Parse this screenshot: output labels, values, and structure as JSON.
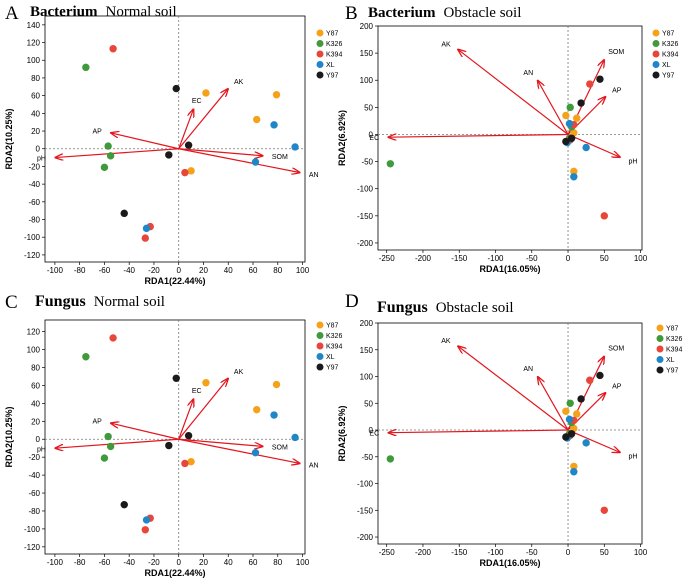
{
  "colors": {
    "Y87": "#f5a21b",
    "K326": "#3f9a3b",
    "K394": "#e8463b",
    "XL": "#1f86c8",
    "Y97": "#1a1a1a",
    "arrow": "#e3161e",
    "zero": "#777777"
  },
  "legend": [
    "Y87",
    "K326",
    "K394",
    "XL",
    "Y97"
  ],
  "chart_data": [
    {
      "type": "scatter",
      "panel": "A",
      "title_bold": "Bacterium",
      "title_rest": "Normal soil",
      "xlabel": "RDA1(22.44%)",
      "ylabel": "RDA2(10.25%)",
      "xlim": [
        -108,
        102
      ],
      "ylim": [
        -128,
        150
      ],
      "xticks": [
        -100,
        -80,
        -60,
        -40,
        -20,
        0,
        20,
        40,
        60,
        80,
        100
      ],
      "yticks": [
        -120,
        -100,
        -80,
        -60,
        -40,
        -20,
        0,
        20,
        40,
        60,
        80,
        100,
        120,
        140
      ],
      "points": [
        {
          "g": "Y87",
          "x": 22,
          "y": 63
        },
        {
          "g": "Y87",
          "x": 63,
          "y": 33
        },
        {
          "g": "Y87",
          "x": 79,
          "y": 61
        },
        {
          "g": "Y87",
          "x": 10,
          "y": -25
        },
        {
          "g": "K326",
          "x": -75,
          "y": 92
        },
        {
          "g": "K326",
          "x": -57,
          "y": 3
        },
        {
          "g": "K326",
          "x": -55,
          "y": -8
        },
        {
          "g": "K326",
          "x": -60,
          "y": -21
        },
        {
          "g": "K394",
          "x": -53,
          "y": 113
        },
        {
          "g": "K394",
          "x": 5,
          "y": -27
        },
        {
          "g": "K394",
          "x": -23,
          "y": -88
        },
        {
          "g": "K394",
          "x": -27,
          "y": -101
        },
        {
          "g": "XL",
          "x": 77,
          "y": 27
        },
        {
          "g": "XL",
          "x": 94,
          "y": 2
        },
        {
          "g": "XL",
          "x": 62,
          "y": -15
        },
        {
          "g": "XL",
          "x": -26,
          "y": -90
        },
        {
          "g": "Y97",
          "x": -2,
          "y": 68
        },
        {
          "g": "Y97",
          "x": 8,
          "y": 4
        },
        {
          "g": "Y97",
          "x": -8,
          "y": -7
        },
        {
          "g": "Y97",
          "x": -44,
          "y": -73
        }
      ],
      "vectors": [
        {
          "name": "AK",
          "x": 40,
          "y": 68
        },
        {
          "name": "EC",
          "x": 12,
          "y": 45
        },
        {
          "name": "AP",
          "x": -55,
          "y": 18
        },
        {
          "name": "pH",
          "x": -100,
          "y": -10
        },
        {
          "name": "SOM",
          "x": 68,
          "y": -8
        },
        {
          "name": "AN",
          "x": 98,
          "y": -27
        }
      ]
    },
    {
      "type": "scatter",
      "panel": "B",
      "title_bold": "Bacterium",
      "title_rest": "Obstacle soil",
      "xlabel": "RDA1(16.05%)",
      "ylabel": "RDA2(6.92%)",
      "xlim": [
        -262,
        102
      ],
      "ylim": [
        -213,
        200
      ],
      "xticks": [
        -250,
        -200,
        -150,
        -100,
        -50,
        0,
        50,
        100
      ],
      "yticks": [
        -200,
        -150,
        -100,
        -50,
        0,
        50,
        100,
        150,
        200
      ],
      "points": [
        {
          "g": "Y87",
          "x": -3,
          "y": 35
        },
        {
          "g": "Y87",
          "x": 12,
          "y": 30
        },
        {
          "g": "Y87",
          "x": 8,
          "y": 3
        },
        {
          "g": "Y87",
          "x": 8,
          "y": -68
        },
        {
          "g": "K326",
          "x": -245,
          "y": -54
        },
        {
          "g": "K326",
          "x": 3,
          "y": 50
        },
        {
          "g": "K326",
          "x": 5,
          "y": 14
        },
        {
          "g": "K326",
          "x": 2,
          "y": -7
        },
        {
          "g": "K394",
          "x": 30,
          "y": 93
        },
        {
          "g": "K394",
          "x": 50,
          "y": -150
        },
        {
          "g": "K394",
          "x": 8,
          "y": 18
        },
        {
          "g": "K394",
          "x": 3,
          "y": -10
        },
        {
          "g": "XL",
          "x": 25,
          "y": -24
        },
        {
          "g": "XL",
          "x": 8,
          "y": -78
        },
        {
          "g": "XL",
          "x": 2,
          "y": 20
        },
        {
          "g": "XL",
          "x": -1,
          "y": -15
        },
        {
          "g": "Y97",
          "x": 44,
          "y": 102
        },
        {
          "g": "Y97",
          "x": 18,
          "y": 58
        },
        {
          "g": "Y97",
          "x": 5,
          "y": -7
        },
        {
          "g": "Y97",
          "x": -3,
          "y": -13
        }
      ],
      "vectors": [
        {
          "name": "AK",
          "x": -152,
          "y": 157
        },
        {
          "name": "AN",
          "x": -42,
          "y": 100
        },
        {
          "name": "SOM",
          "x": 50,
          "y": 138
        },
        {
          "name": "AP",
          "x": 52,
          "y": 70
        },
        {
          "name": "EC",
          "x": -248,
          "y": -5
        },
        {
          "name": "pH",
          "x": 72,
          "y": -42
        }
      ]
    },
    {
      "type": "scatter",
      "panel": "C",
      "title_bold": "Fungus",
      "title_rest": "Normal soil",
      "xlabel": "RDA1(22.44%)",
      "ylabel": "RDA2(10.25%)",
      "xlim": [
        -108,
        102
      ],
      "ylim": [
        -128,
        133
      ],
      "xticks": [
        -100,
        -80,
        -60,
        -40,
        -20,
        0,
        20,
        40,
        60,
        80,
        100
      ],
      "yticks": [
        -120,
        -100,
        -80,
        -60,
        -40,
        -20,
        0,
        20,
        40,
        60,
        80,
        100,
        120
      ],
      "points": [
        {
          "g": "Y87",
          "x": 22,
          "y": 63
        },
        {
          "g": "Y87",
          "x": 63,
          "y": 33
        },
        {
          "g": "Y87",
          "x": 79,
          "y": 61
        },
        {
          "g": "Y87",
          "x": 10,
          "y": -25
        },
        {
          "g": "K326",
          "x": -75,
          "y": 92
        },
        {
          "g": "K326",
          "x": -57,
          "y": 3
        },
        {
          "g": "K326",
          "x": -55,
          "y": -8
        },
        {
          "g": "K326",
          "x": -60,
          "y": -21
        },
        {
          "g": "K394",
          "x": -53,
          "y": 113
        },
        {
          "g": "K394",
          "x": 5,
          "y": -27
        },
        {
          "g": "K394",
          "x": -23,
          "y": -88
        },
        {
          "g": "K394",
          "x": -27,
          "y": -101
        },
        {
          "g": "XL",
          "x": 77,
          "y": 27
        },
        {
          "g": "XL",
          "x": 94,
          "y": 2
        },
        {
          "g": "XL",
          "x": 62,
          "y": -15
        },
        {
          "g": "XL",
          "x": -26,
          "y": -90
        },
        {
          "g": "Y97",
          "x": -2,
          "y": 68
        },
        {
          "g": "Y97",
          "x": 8,
          "y": 4
        },
        {
          "g": "Y97",
          "x": -8,
          "y": -7
        },
        {
          "g": "Y97",
          "x": -44,
          "y": -73
        }
      ],
      "vectors": [
        {
          "name": "AK",
          "x": 40,
          "y": 68
        },
        {
          "name": "EC",
          "x": 12,
          "y": 45
        },
        {
          "name": "AP",
          "x": -55,
          "y": 18
        },
        {
          "name": "pH",
          "x": -100,
          "y": -10
        },
        {
          "name": "SOM",
          "x": 68,
          "y": -8
        },
        {
          "name": "AN",
          "x": 98,
          "y": -27
        }
      ]
    },
    {
      "type": "scatter",
      "panel": "D",
      "title_bold": "Fungus",
      "title_rest": "Obstacle soil",
      "xlabel": "RDA1(16.05%)",
      "ylabel": "RDA2(6.92%)",
      "xlim": [
        -262,
        102
      ],
      "ylim": [
        -213,
        200
      ],
      "xticks": [
        -250,
        -200,
        -150,
        -100,
        -50,
        0,
        50,
        100
      ],
      "yticks": [
        -200,
        -150,
        -100,
        -50,
        0,
        50,
        100,
        150,
        200
      ],
      "points": [
        {
          "g": "Y87",
          "x": -3,
          "y": 35
        },
        {
          "g": "Y87",
          "x": 12,
          "y": 30
        },
        {
          "g": "Y87",
          "x": 8,
          "y": 3
        },
        {
          "g": "Y87",
          "x": 8,
          "y": -68
        },
        {
          "g": "K326",
          "x": -245,
          "y": -54
        },
        {
          "g": "K326",
          "x": 3,
          "y": 50
        },
        {
          "g": "K326",
          "x": 5,
          "y": 14
        },
        {
          "g": "K326",
          "x": 2,
          "y": -7
        },
        {
          "g": "K394",
          "x": 30,
          "y": 93
        },
        {
          "g": "K394",
          "x": 50,
          "y": -150
        },
        {
          "g": "K394",
          "x": 8,
          "y": 18
        },
        {
          "g": "K394",
          "x": 3,
          "y": -10
        },
        {
          "g": "XL",
          "x": 25,
          "y": -24
        },
        {
          "g": "XL",
          "x": 8,
          "y": -78
        },
        {
          "g": "XL",
          "x": 2,
          "y": 20
        },
        {
          "g": "XL",
          "x": -1,
          "y": -15
        },
        {
          "g": "Y97",
          "x": 44,
          "y": 102
        },
        {
          "g": "Y97",
          "x": 18,
          "y": 58
        },
        {
          "g": "Y97",
          "x": 5,
          "y": -7
        },
        {
          "g": "Y97",
          "x": -3,
          "y": -13
        }
      ],
      "vectors": [
        {
          "name": "AK",
          "x": -152,
          "y": 157
        },
        {
          "name": "AN",
          "x": -42,
          "y": 100
        },
        {
          "name": "SOM",
          "x": 50,
          "y": 138
        },
        {
          "name": "AP",
          "x": 52,
          "y": 70
        },
        {
          "name": "EC",
          "x": -248,
          "y": -5
        },
        {
          "name": "pH",
          "x": 72,
          "y": -42
        }
      ]
    }
  ]
}
